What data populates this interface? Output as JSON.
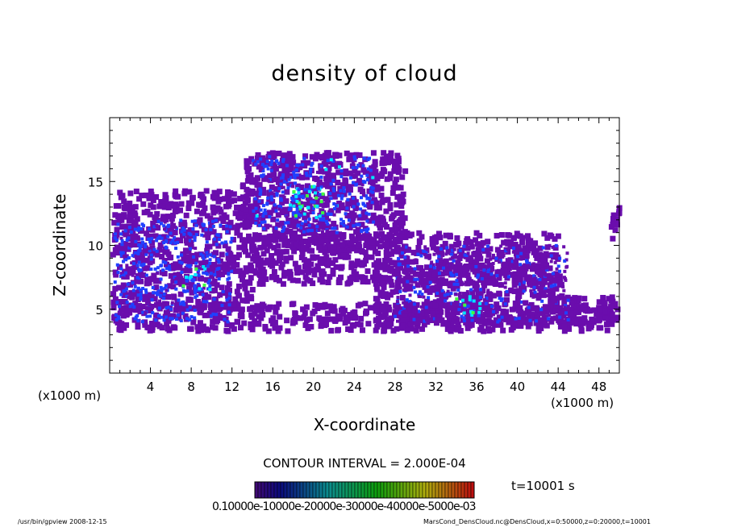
{
  "chart_data": {
    "type": "heatmap",
    "title": "density of cloud",
    "xlabel": "X-coordinate",
    "ylabel": "Z-coordinate",
    "x_unit_label": "(x1000 m)",
    "x_ticks": [
      4,
      8,
      12,
      16,
      20,
      24,
      28,
      32,
      36,
      40,
      44,
      48
    ],
    "y_ticks": [
      5,
      10,
      15
    ],
    "xlim": [
      0,
      50
    ],
    "ylim": [
      0,
      20
    ],
    "contour_interval_text": "CONTOUR INTERVAL = 2.000E-04",
    "colorbar_label_text": "0.10000e-10000e-20000e-30000e-40000e-5000e-03",
    "time_label": "t=10001 s",
    "colors": {
      "low": "#6a0dad",
      "mid": "#2040ff",
      "high": "#00e5ff",
      "peak": "#40ff40",
      "frame": "#000000"
    },
    "regions": [
      {
        "name": "upper-central cloud",
        "x": [
          14,
          26
        ],
        "z": [
          11,
          17
        ],
        "level": 0.6
      },
      {
        "name": "left cloud",
        "x": [
          0.5,
          12
        ],
        "z": [
          4,
          12
        ],
        "level": 0.55
      },
      {
        "name": "mid-right cloud",
        "x": [
          28,
          45
        ],
        "z": [
          4,
          10
        ],
        "level": 0.4
      },
      {
        "name": "core 1",
        "x": [
          18,
          21
        ],
        "z": [
          12,
          15
        ],
        "level": 0.9
      },
      {
        "name": "core 2",
        "x": [
          7,
          10
        ],
        "z": [
          6.5,
          8.5
        ],
        "level": 0.85
      },
      {
        "name": "core 3",
        "x": [
          34,
          37
        ],
        "z": [
          4.5,
          6
        ],
        "level": 0.8
      }
    ]
  },
  "footer": {
    "left": "/usr/bin/gpview   2008-12-15",
    "right": "MarsCond_DensCloud.nc@DensCloud,x=0:50000,z=0:20000,t=10001"
  }
}
